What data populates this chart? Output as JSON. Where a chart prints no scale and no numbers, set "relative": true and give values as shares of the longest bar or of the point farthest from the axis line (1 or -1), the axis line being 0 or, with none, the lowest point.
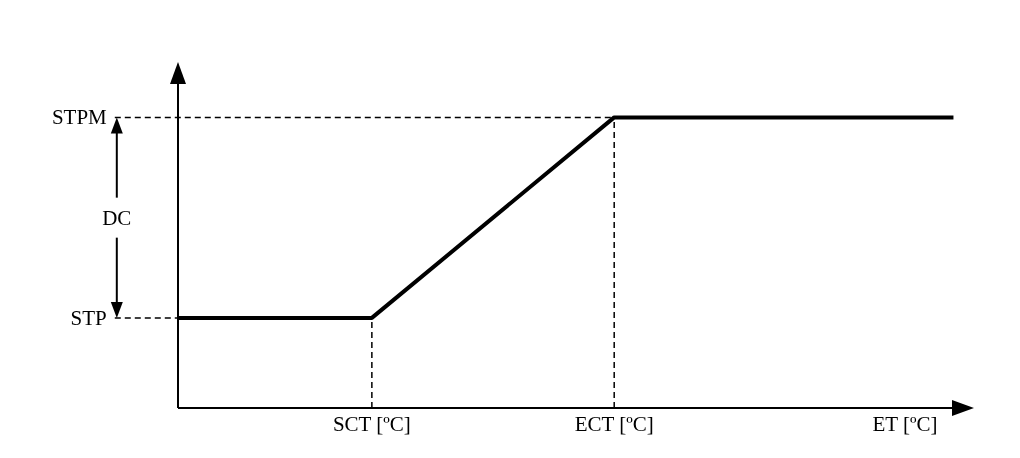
{
  "chart_data": {
    "type": "line",
    "relative": true,
    "categories": [
      null,
      null,
      null,
      null,
      "SCT [ºC]",
      null,
      null,
      null,
      null,
      "ECT [ºC]",
      null,
      null,
      null,
      null,
      null,
      "ET [ºC]",
      null
    ],
    "values": [
      0.31,
      null,
      null,
      null,
      0.31,
      null,
      null,
      null,
      null,
      1,
      null,
      null,
      null,
      null,
      null,
      null,
      1
    ],
    "color": "#000000",
    "marker": "none",
    "ref_lines": [
      {
        "axis": "x",
        "value": "SCT [ºC]",
        "line_style": "dashed"
      },
      {
        "axis": "x",
        "value": "ECT [ºC]",
        "line_style": "dashed"
      },
      {
        "axis": "y",
        "value": 0.31,
        "label": "STP",
        "line_style": "dashed"
      },
      {
        "axis": "y",
        "value": 1,
        "label": "STPM",
        "line_style": "dashed"
      }
    ],
    "annotations": [
      "DC"
    ]
  }
}
